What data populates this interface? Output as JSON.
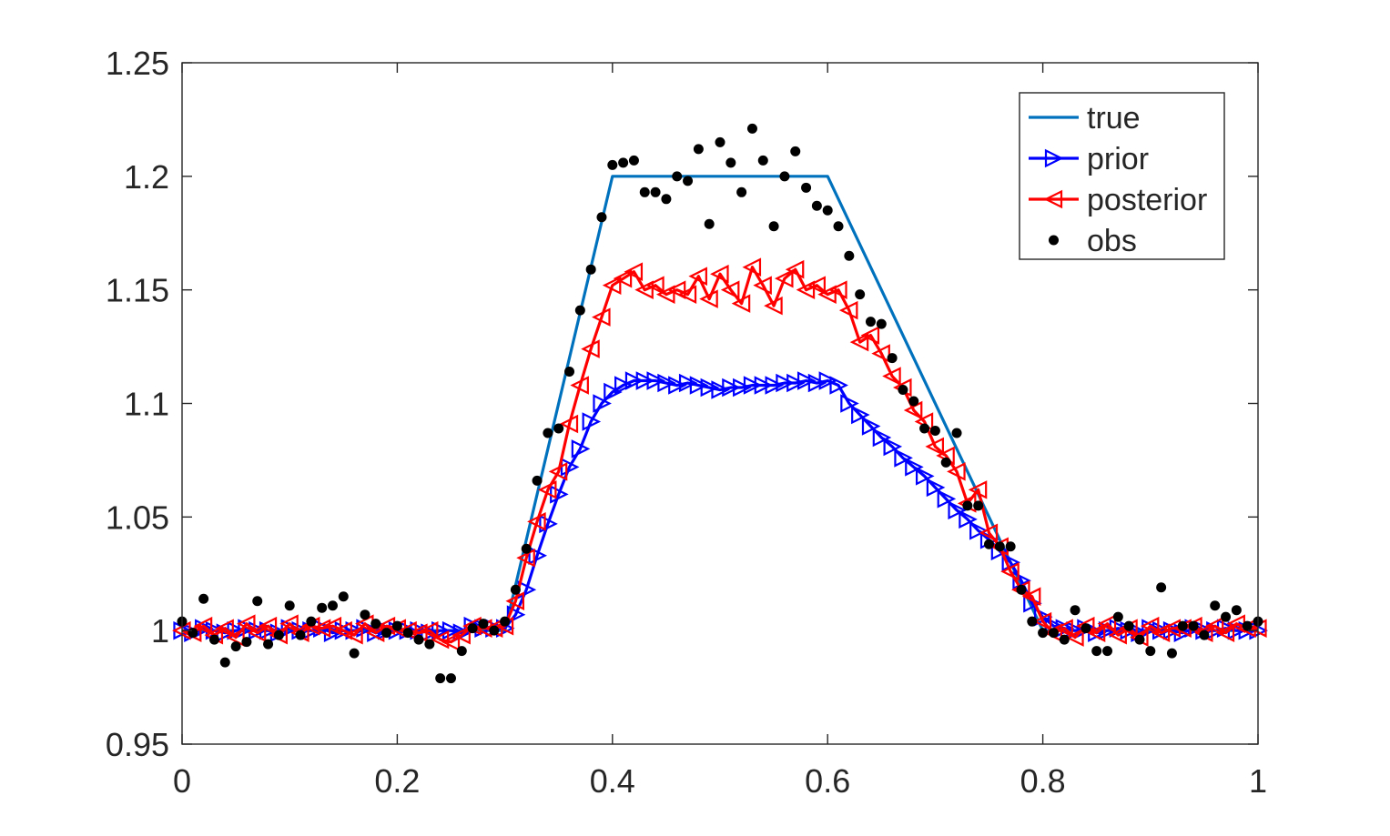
{
  "chart_data": {
    "type": "line",
    "title": "",
    "xlabel": "",
    "ylabel": "",
    "xlim": [
      0,
      1
    ],
    "ylim": [
      0.95,
      1.25
    ],
    "x_ticks": [
      0,
      0.2,
      0.4,
      0.6,
      0.8,
      1
    ],
    "x_tick_labels": [
      "0",
      "0.2",
      "0.4",
      "0.6",
      "0.8",
      "1"
    ],
    "y_ticks": [
      0.95,
      1.0,
      1.05,
      1.1,
      1.15,
      1.2,
      1.25
    ],
    "y_tick_labels": [
      "0.95",
      "1",
      "1.05",
      "1.1",
      "1.15",
      "1.2",
      "1.25"
    ],
    "grid": false,
    "legend_position": "top-right",
    "series": [
      {
        "name": "true",
        "color": "#0072BD",
        "marker": "none",
        "x": [
          0,
          0.3,
          0.4,
          0.6,
          0.8,
          1
        ],
        "y": [
          1.0,
          1.0,
          1.2,
          1.2,
          1.0,
          1.0
        ]
      },
      {
        "name": "prior",
        "color": "#0000FF",
        "marker": "triangle-right",
        "x": [
          0,
          0.01,
          0.02,
          0.03,
          0.04,
          0.05,
          0.06,
          0.07,
          0.08,
          0.09,
          0.1,
          0.11,
          0.12,
          0.13,
          0.14,
          0.15,
          0.16,
          0.17,
          0.18,
          0.19,
          0.2,
          0.21,
          0.22,
          0.23,
          0.24,
          0.25,
          0.26,
          0.27,
          0.28,
          0.29,
          0.3,
          0.31,
          0.32,
          0.33,
          0.34,
          0.35,
          0.36,
          0.37,
          0.38,
          0.39,
          0.4,
          0.41,
          0.42,
          0.43,
          0.44,
          0.45,
          0.46,
          0.47,
          0.48,
          0.49,
          0.5,
          0.51,
          0.52,
          0.53,
          0.54,
          0.55,
          0.56,
          0.57,
          0.58,
          0.59,
          0.6,
          0.61,
          0.62,
          0.63,
          0.64,
          0.65,
          0.66,
          0.67,
          0.68,
          0.69,
          0.7,
          0.71,
          0.72,
          0.73,
          0.74,
          0.75,
          0.76,
          0.77,
          0.78,
          0.79,
          0.8,
          0.81,
          0.82,
          0.83,
          0.84,
          0.85,
          0.86,
          0.87,
          0.88,
          0.89,
          0.9,
          0.91,
          0.92,
          0.93,
          0.94,
          0.95,
          0.96,
          0.97,
          0.98,
          0.99,
          1
        ],
        "y": [
          1.0,
          0.999,
          1.001,
          1.0,
          0.999,
          1.0,
          1.001,
          1.0,
          1.0,
          0.999,
          1.001,
          1.0,
          1.0,
          1.001,
          0.999,
          1.0,
          1.0,
          1.001,
          0.999,
          1.0,
          1.0,
          1.0,
          1.0,
          0.999,
          1.0,
          1.0,
          0.999,
          1.002,
          1.001,
          1.001,
          1.001,
          1.007,
          1.018,
          1.033,
          1.047,
          1.06,
          1.072,
          1.08,
          1.092,
          1.1,
          1.105,
          1.108,
          1.11,
          1.11,
          1.11,
          1.109,
          1.108,
          1.109,
          1.108,
          1.107,
          1.106,
          1.107,
          1.107,
          1.108,
          1.108,
          1.108,
          1.109,
          1.109,
          1.11,
          1.109,
          1.11,
          1.108,
          1.1,
          1.095,
          1.09,
          1.085,
          1.081,
          1.076,
          1.072,
          1.068,
          1.063,
          1.058,
          1.053,
          1.049,
          1.044,
          1.04,
          1.035,
          1.03,
          1.022,
          1.012,
          1.006,
          1.002,
          1.001,
          1.0,
          1.001,
          0.999,
          1.0,
          1.001,
          1.0,
          0.999,
          1.001,
          1.0,
          1.0,
          0.999,
          1.001,
          1.0,
          1.0,
          1.001,
          1.0,
          1.0,
          1.0
        ]
      },
      {
        "name": "posterior",
        "color": "#FF0000",
        "marker": "triangle-left",
        "x": [
          0,
          0.01,
          0.02,
          0.03,
          0.04,
          0.05,
          0.06,
          0.07,
          0.08,
          0.09,
          0.1,
          0.11,
          0.12,
          0.13,
          0.14,
          0.15,
          0.16,
          0.17,
          0.18,
          0.19,
          0.2,
          0.21,
          0.22,
          0.23,
          0.24,
          0.25,
          0.26,
          0.27,
          0.28,
          0.29,
          0.3,
          0.31,
          0.32,
          0.33,
          0.34,
          0.35,
          0.36,
          0.37,
          0.38,
          0.39,
          0.4,
          0.41,
          0.42,
          0.43,
          0.44,
          0.45,
          0.46,
          0.47,
          0.48,
          0.49,
          0.5,
          0.51,
          0.52,
          0.53,
          0.54,
          0.55,
          0.56,
          0.57,
          0.58,
          0.59,
          0.6,
          0.61,
          0.62,
          0.63,
          0.64,
          0.65,
          0.66,
          0.67,
          0.68,
          0.69,
          0.7,
          0.71,
          0.72,
          0.73,
          0.74,
          0.75,
          0.76,
          0.77,
          0.78,
          0.79,
          0.8,
          0.81,
          0.82,
          0.83,
          0.84,
          0.85,
          0.86,
          0.87,
          0.88,
          0.89,
          0.9,
          0.91,
          0.92,
          0.93,
          0.94,
          0.95,
          0.96,
          0.97,
          0.98,
          0.99,
          1
        ],
        "y": [
          1.0,
          0.999,
          1.002,
          0.998,
          1.001,
          0.997,
          1.003,
          0.999,
          1.002,
          0.998,
          1.003,
          0.999,
          1.002,
          1.001,
          1.002,
          1.0,
          0.998,
          1.003,
          0.999,
          1.002,
          1.001,
          1.0,
          0.999,
          1.0,
          0.996,
          0.995,
          0.998,
          1.002,
          1.001,
          1.001,
          1.002,
          1.013,
          1.032,
          1.048,
          1.062,
          1.07,
          1.091,
          1.108,
          1.124,
          1.138,
          1.152,
          1.155,
          1.158,
          1.15,
          1.152,
          1.148,
          1.15,
          1.148,
          1.156,
          1.146,
          1.157,
          1.15,
          1.144,
          1.16,
          1.152,
          1.143,
          1.155,
          1.159,
          1.15,
          1.152,
          1.148,
          1.15,
          1.141,
          1.127,
          1.13,
          1.122,
          1.112,
          1.107,
          1.097,
          1.092,
          1.081,
          1.077,
          1.07,
          1.056,
          1.062,
          1.043,
          1.037,
          1.026,
          1.018,
          1.015,
          1.004,
          0.999,
          1.001,
          0.997,
          1.002,
          0.999,
          1.003,
          0.998,
          1.001,
          0.997,
          1.002,
          0.999,
          1.001,
          1.001,
          1.002,
          0.999,
          1.002,
          0.999,
          1.003,
          1.001,
          1.001
        ]
      },
      {
        "name": "obs",
        "color": "#000000",
        "marker": "dot",
        "x": [
          0,
          0.01,
          0.02,
          0.03,
          0.04,
          0.05,
          0.06,
          0.07,
          0.08,
          0.09,
          0.1,
          0.11,
          0.12,
          0.13,
          0.14,
          0.15,
          0.16,
          0.17,
          0.18,
          0.19,
          0.2,
          0.21,
          0.22,
          0.23,
          0.24,
          0.25,
          0.26,
          0.27,
          0.28,
          0.29,
          0.3,
          0.31,
          0.32,
          0.33,
          0.34,
          0.35,
          0.36,
          0.37,
          0.38,
          0.39,
          0.4,
          0.41,
          0.42,
          0.43,
          0.44,
          0.45,
          0.46,
          0.47,
          0.48,
          0.49,
          0.5,
          0.51,
          0.52,
          0.53,
          0.54,
          0.55,
          0.56,
          0.57,
          0.58,
          0.59,
          0.6,
          0.61,
          0.62,
          0.63,
          0.64,
          0.65,
          0.66,
          0.67,
          0.68,
          0.69,
          0.7,
          0.71,
          0.72,
          0.73,
          0.74,
          0.75,
          0.76,
          0.77,
          0.78,
          0.79,
          0.8,
          0.81,
          0.82,
          0.83,
          0.84,
          0.85,
          0.86,
          0.87,
          0.88,
          0.89,
          0.9,
          0.91,
          0.92,
          0.93,
          0.94,
          0.95,
          0.96,
          0.97,
          0.98,
          0.99,
          1
        ],
        "y": [
          1.004,
          0.999,
          1.014,
          0.996,
          0.986,
          0.993,
          0.995,
          1.013,
          0.994,
          0.998,
          1.011,
          0.998,
          1.004,
          1.01,
          1.011,
          1.015,
          0.99,
          1.007,
          1.003,
          0.999,
          1.002,
          0.999,
          0.996,
          0.994,
          0.979,
          0.979,
          0.991,
          1.001,
          1.003,
          1.0,
          1.004,
          1.018,
          1.036,
          1.066,
          1.087,
          1.089,
          1.114,
          1.141,
          1.159,
          1.182,
          1.205,
          1.206,
          1.207,
          1.193,
          1.193,
          1.19,
          1.2,
          1.198,
          1.212,
          1.179,
          1.215,
          1.206,
          1.193,
          1.221,
          1.207,
          1.178,
          1.2,
          1.211,
          1.195,
          1.187,
          1.185,
          1.178,
          1.165,
          1.148,
          1.136,
          1.135,
          1.12,
          1.106,
          1.101,
          1.089,
          1.088,
          1.074,
          1.087,
          1.055,
          1.055,
          1.038,
          1.037,
          1.037,
          1.018,
          1.004,
          0.999,
          0.999,
          0.996,
          1.009,
          1.001,
          0.991,
          0.991,
          1.006,
          1.002,
          0.996,
          0.991,
          1.019,
          0.99,
          1.002,
          1.002,
          0.998,
          1.011,
          1.006,
          1.009,
          1.002,
          1.004
        ]
      }
    ]
  }
}
